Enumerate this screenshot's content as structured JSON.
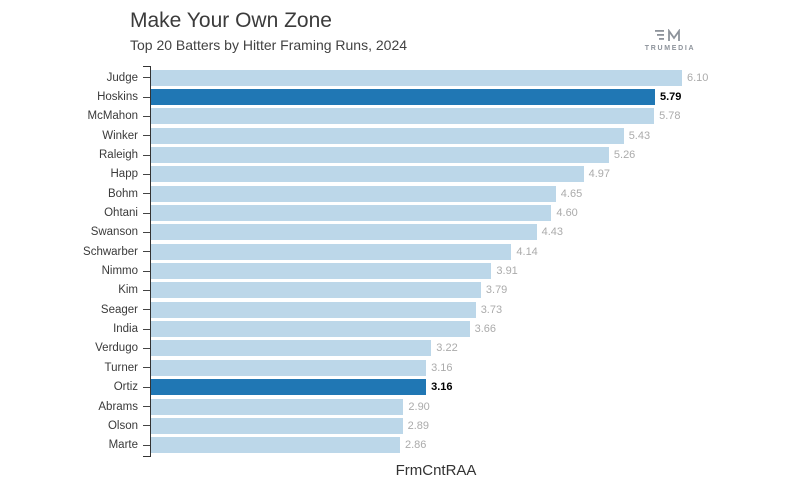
{
  "header": {
    "title": "Make Your Own Zone",
    "subtitle": "Top 20 Batters by Hitter Framing Runs, 2024",
    "logo_text": "TRUMEDIA"
  },
  "chart_data": {
    "type": "bar",
    "orientation": "horizontal",
    "title": "Make Your Own Zone",
    "subtitle": "Top 20 Batters by Hitter Framing Runs, 2024",
    "xlabel": "FrmCntRAA",
    "xlim": [
      0,
      6.5
    ],
    "grid": false,
    "legend": false,
    "categories": [
      "Judge",
      "Hoskins",
      "McMahon",
      "Winker",
      "Raleigh",
      "Happ",
      "Bohm",
      "Ohtani",
      "Swanson",
      "Schwarber",
      "Nimmo",
      "Kim",
      "Seager",
      "India",
      "Verdugo",
      "Turner",
      "Ortiz",
      "Abrams",
      "Olson",
      "Marte"
    ],
    "values": [
      6.1,
      5.79,
      5.78,
      5.43,
      5.26,
      4.97,
      4.65,
      4.6,
      4.43,
      4.14,
      3.91,
      3.79,
      3.73,
      3.66,
      3.22,
      3.16,
      3.16,
      2.9,
      2.89,
      2.86
    ],
    "highlighted": [
      "Hoskins",
      "Ortiz"
    ],
    "colors": {
      "bar": "#BCD7E9",
      "bar_highlight": "#2077B4",
      "value_label": "#ABABAB",
      "value_label_highlight": "#000000",
      "axis": "#333333",
      "category_label": "#3A3A3A"
    }
  }
}
